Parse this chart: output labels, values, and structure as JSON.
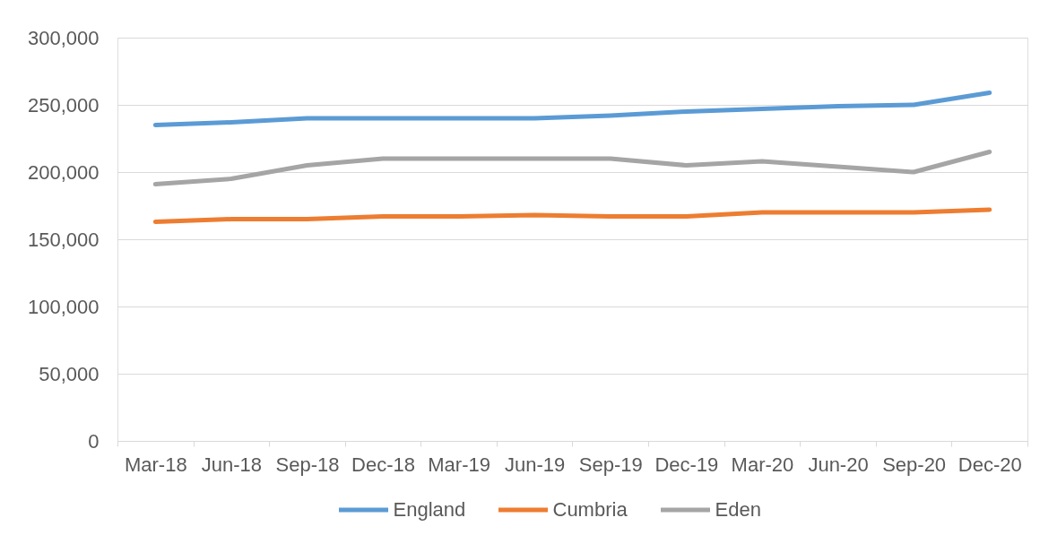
{
  "chart_data": {
    "type": "line",
    "categories": [
      "Mar-18",
      "Jun-18",
      "Sep-18",
      "Dec-18",
      "Mar-19",
      "Jun-19",
      "Sep-19",
      "Dec-19",
      "Mar-20",
      "Jun-20",
      "Sep-20",
      "Dec-20"
    ],
    "series": [
      {
        "name": "England",
        "color": "#5b9bd5",
        "values": [
          235000,
          237000,
          240000,
          240000,
          240000,
          240000,
          242000,
          245000,
          247000,
          249000,
          250000,
          259000
        ]
      },
      {
        "name": "Cumbria",
        "color": "#ed7d31",
        "values": [
          163000,
          165000,
          165000,
          167000,
          167000,
          168000,
          167000,
          167000,
          170000,
          170000,
          170000,
          172000
        ]
      },
      {
        "name": "Eden",
        "color": "#a5a5a5",
        "values": [
          191000,
          195000,
          205000,
          210000,
          210000,
          210000,
          210000,
          205000,
          208000,
          204000,
          200000,
          215000
        ]
      }
    ],
    "ylim": [
      0,
      300000
    ],
    "yticks": [
      {
        "value": 0,
        "label": "0"
      },
      {
        "value": 50000,
        "label": "50,000"
      },
      {
        "value": 100000,
        "label": "100,000"
      },
      {
        "value": 150000,
        "label": "150,000"
      },
      {
        "value": 200000,
        "label": "200,000"
      },
      {
        "value": 250000,
        "label": "250,000"
      },
      {
        "value": 300000,
        "label": "300,000"
      }
    ],
    "grid": "y",
    "legend": "bottom"
  }
}
